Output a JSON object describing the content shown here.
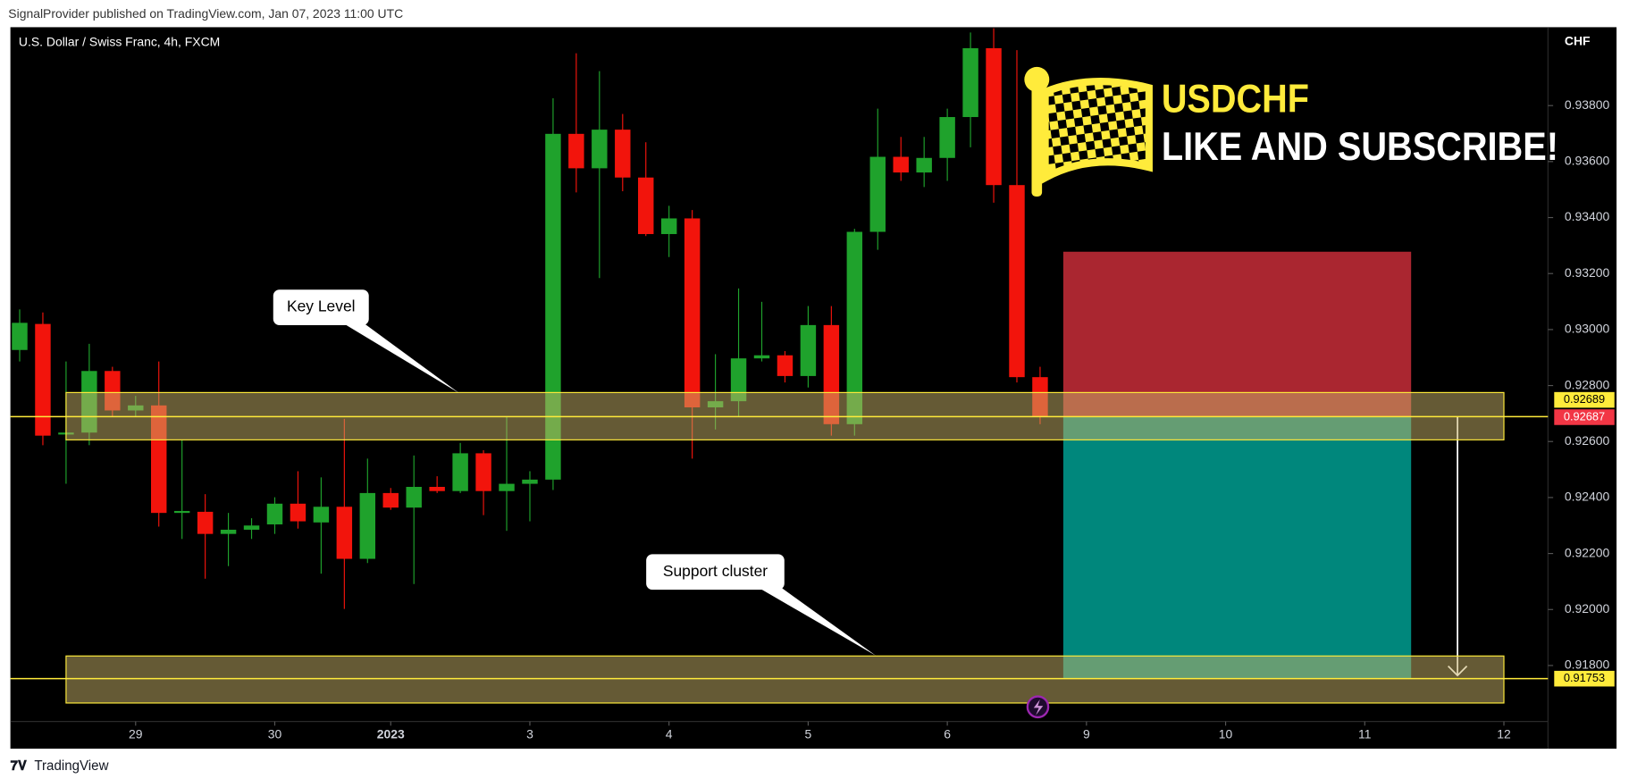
{
  "header": {
    "publisher": "SignalProvider published on TradingView.com, Jan 07, 2023 11:00 UTC"
  },
  "footer": {
    "brand": "TradingView"
  },
  "chart_data": {
    "type": "candlestick",
    "title": "U.S. Dollar / Swiss Franc, 4h, FXCM",
    "currency": "CHF",
    "up_color": "#1fa22c",
    "down_color": "#f2140c",
    "open": [
      0.92927,
      0.9302,
      0.92625,
      0.92632,
      0.92852,
      0.92711,
      0.92729,
      0.92345,
      0.92349,
      0.9227,
      0.92285,
      0.92304,
      0.92378,
      0.92311,
      0.92367,
      0.92181,
      0.92416,
      0.92364,
      0.92438,
      0.92423,
      0.92558,
      0.92423,
      0.92449,
      0.92464,
      0.93699,
      0.93576,
      0.93714,
      0.93543,
      0.93341,
      0.93397,
      0.92722,
      0.92744,
      0.92897,
      0.92908,
      0.92834,
      0.93016,
      0.92662,
      0.93349,
      0.93617,
      0.93561,
      0.93613,
      0.93759,
      0.94005,
      0.93516,
      0.9283
    ],
    "high": [
      0.93072,
      0.93061,
      0.92886,
      0.92949,
      0.92867,
      0.92763,
      0.92886,
      0.92606,
      0.92412,
      0.92345,
      0.92326,
      0.92401,
      0.92494,
      0.92472,
      0.92681,
      0.92539,
      0.92434,
      0.9255,
      0.92476,
      0.92595,
      0.92569,
      0.92688,
      0.92494,
      0.93826,
      0.93987,
      0.93923,
      0.9377,
      0.93669,
      0.93442,
      0.93427,
      0.92912,
      0.93147,
      0.93099,
      0.92923,
      0.93084,
      0.93084,
      0.9336,
      0.93789,
      0.93688,
      0.93688,
      0.93789,
      0.94061,
      0.94076,
      0.93998,
      0.92867
    ],
    "low": [
      0.92886,
      0.92587,
      0.92449,
      0.92587,
      0.92688,
      0.92688,
      0.92296,
      0.92252,
      0.9211,
      0.92155,
      0.92252,
      0.9227,
      0.92289,
      0.92128,
      0.92002,
      0.92166,
      0.92356,
      0.92091,
      0.92416,
      0.92416,
      0.92337,
      0.92281,
      0.92315,
      0.92427,
      0.9349,
      0.93184,
      0.93494,
      0.93334,
      0.93259,
      0.92539,
      0.92643,
      0.92688,
      0.92886,
      0.92811,
      0.92793,
      0.92621,
      0.92621,
      0.93285,
      0.93531,
      0.93509,
      0.93531,
      0.93651,
      0.93453,
      0.92811,
      0.92662
    ],
    "close": [
      0.93024,
      0.92621,
      0.92632,
      0.92852,
      0.92711,
      0.92729,
      0.92345,
      0.92352,
      0.9227,
      0.92285,
      0.923,
      0.92378,
      0.92315,
      0.92367,
      0.92181,
      0.92416,
      0.92364,
      0.92438,
      0.92423,
      0.92558,
      0.92423,
      0.92449,
      0.92464,
      0.93699,
      0.93576,
      0.93714,
      0.93543,
      0.93341,
      0.93397,
      0.92722,
      0.92744,
      0.92897,
      0.92908,
      0.92834,
      0.93016,
      0.92662,
      0.93349,
      0.93617,
      0.93561,
      0.93613,
      0.93759,
      0.94005,
      0.93516,
      0.9283,
      0.92688
    ],
    "xlim": [
      -0.4,
      65.9
    ],
    "ylim": [
      0.916,
      0.9408
    ],
    "xticks": [
      {
        "value": 5,
        "label": "29"
      },
      {
        "value": 11,
        "label": "30"
      },
      {
        "value": 16,
        "label": "2023"
      },
      {
        "value": 22,
        "label": "3"
      },
      {
        "value": 28,
        "label": "4"
      },
      {
        "value": 34,
        "label": "5"
      },
      {
        "value": 40,
        "label": "6"
      },
      {
        "value": 46,
        "label": "9"
      },
      {
        "value": 52,
        "label": "10"
      },
      {
        "value": 58,
        "label": "11"
      },
      {
        "value": 64,
        "label": "12"
      }
    ],
    "yticks": [
      {
        "value": 0.918,
        "label": "0.91800"
      },
      {
        "value": 0.92,
        "label": "0.92000"
      },
      {
        "value": 0.922,
        "label": "0.92200"
      },
      {
        "value": 0.924,
        "label": "0.92400"
      },
      {
        "value": 0.926,
        "label": "0.92600"
      },
      {
        "value": 0.928,
        "label": "0.92800"
      },
      {
        "value": 0.93,
        "label": "0.93000"
      },
      {
        "value": 0.932,
        "label": "0.93200"
      },
      {
        "value": 0.934,
        "label": "0.93400"
      },
      {
        "value": 0.936,
        "label": "0.93600"
      },
      {
        "value": 0.938,
        "label": "0.93800"
      }
    ],
    "price_labels": [
      {
        "value": 0.92689,
        "label": "0.92689",
        "color": "#ffeb3b",
        "line": true
      },
      {
        "value": 0.92687,
        "label": "0.92687",
        "color": "#f23645",
        "line": false
      },
      {
        "value": 0.91753,
        "label": "0.91753",
        "color": "#ffeb3b",
        "line": true
      }
    ],
    "zones": [
      {
        "label": "Key Level",
        "top": 0.92775,
        "bottom": 0.92606,
        "from": 2,
        "to": 64
      },
      {
        "label": "Support cluster",
        "top": 0.91834,
        "bottom": 0.91666,
        "from": 2,
        "to": 64
      }
    ],
    "position": {
      "entry": 0.92689,
      "stop": 0.93278,
      "target": 0.91753,
      "from": 45,
      "to": 60,
      "arrow_at": 62,
      "stop_color": "#f23645",
      "target_color": "#00877c"
    },
    "banner": {
      "symbol": "USDCHF",
      "call": "LIKE AND SUBSCRIBE!"
    }
  }
}
